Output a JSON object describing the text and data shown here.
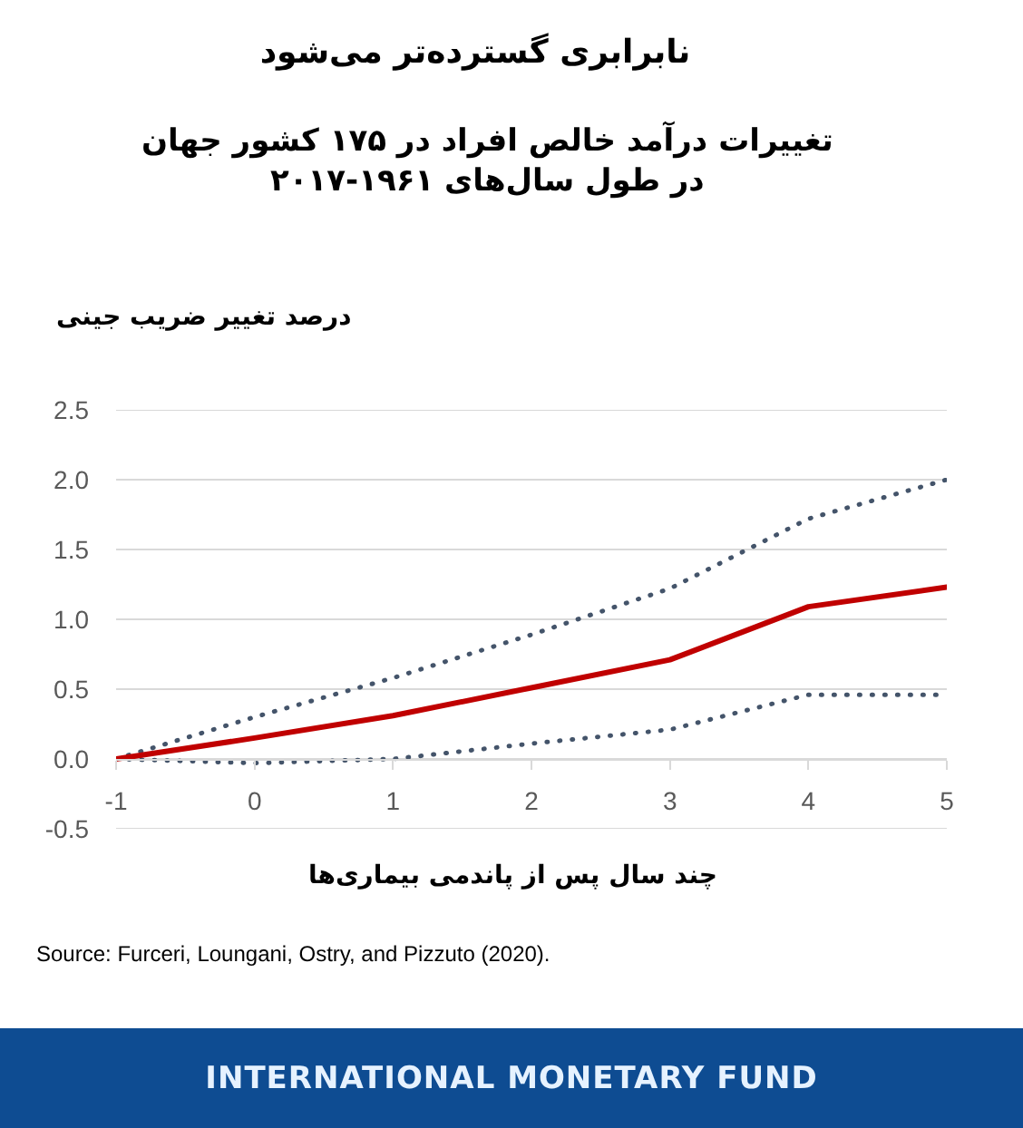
{
  "chart_data": {
    "type": "line",
    "title": "نابرابری گسترده‌تر می‌شود",
    "subtitle": "تغییرات درآمد خالص افراد در ۱۷۵ کشور جهان\nدر طول سال‌های ۱۹۶۱-۲۰۱۷",
    "xlabel": "چند سال پس از پاندمی بیماری‌ها",
    "ylabel": "درصد تغییر ضریب جینی",
    "annotations": [
      "Source: Furceri, Loungani, Ostry, and Pizzuto (2020).",
      "INTERNATIONAL MONETARY FUND"
    ],
    "x": [
      -1,
      0,
      1,
      2,
      3,
      4,
      5
    ],
    "series": [
      {
        "color": "#44546a",
        "line_style": "dotted",
        "values": [
          0,
          0.3,
          0.58,
          0.89,
          1.22,
          1.72,
          2.0
        ]
      },
      {
        "color": "#44546a",
        "line_style": "dotted",
        "values": [
          0,
          -0.03,
          0,
          0.11,
          0.21,
          0.46,
          0.46
        ]
      },
      {
        "color": "#c00000",
        "line_style": "solid",
        "values": [
          0,
          0.15,
          0.31,
          0.51,
          0.71,
          1.09,
          1.23
        ]
      }
    ],
    "xlim": [
      -1,
      5
    ],
    "xticks": [
      -1,
      0,
      1,
      2,
      3,
      4,
      5
    ],
    "ylim": [
      -0.5,
      2.5
    ],
    "yticks": [
      -0.5,
      {
        "value": 0,
        "label": "0.0"
      },
      0.5,
      {
        "value": 1,
        "label": "1.0"
      },
      1.5,
      {
        "value": 2,
        "label": "2.0"
      },
      2.5
    ],
    "grid": "y"
  }
}
